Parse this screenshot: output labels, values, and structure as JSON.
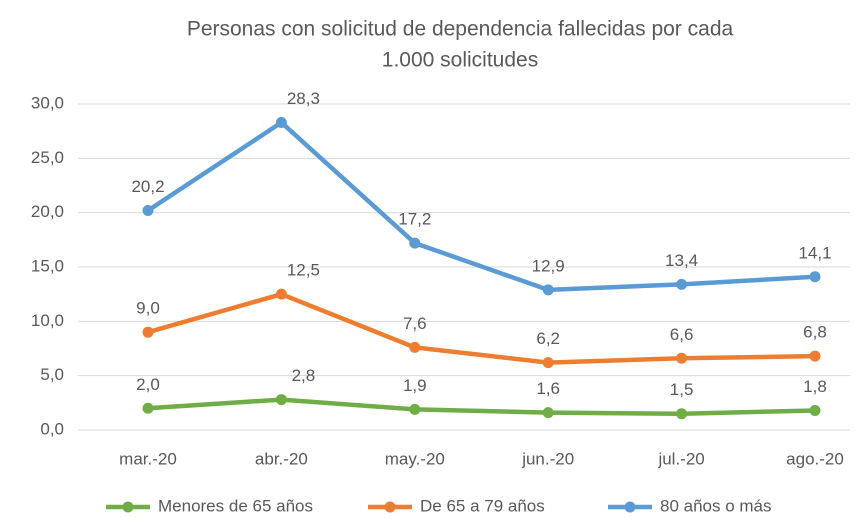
{
  "chart_data": {
    "type": "line",
    "title": [
      "Personas con solicitud de dependencia fallecidas por cada",
      "1.000 solicitudes"
    ],
    "categories": [
      "mar.-20",
      "abr.-20",
      "may.-20",
      "jun.-20",
      "jul.-20",
      "ago.-20"
    ],
    "series": [
      {
        "name": "Menores de 65 años",
        "color": "#70ad47",
        "values": [
          2.0,
          2.8,
          1.9,
          1.6,
          1.5,
          1.8
        ],
        "value_labels": [
          "2,0",
          "2,8",
          "1,9",
          "1,6",
          "1,5",
          "1,8"
        ]
      },
      {
        "name": "De 65 a 79 años",
        "color": "#ed7d31",
        "values": [
          9.0,
          12.5,
          7.6,
          6.2,
          6.6,
          6.8
        ],
        "value_labels": [
          "9,0",
          "12,5",
          "7,6",
          "6,2",
          "6,6",
          "6,8"
        ]
      },
      {
        "name": "80 años o más",
        "color": "#5b9bd5",
        "values": [
          20.2,
          28.3,
          17.2,
          12.9,
          13.4,
          14.1
        ],
        "value_labels": [
          "20,2",
          "28,3",
          "17,2",
          "12,9",
          "13,4",
          "14,1"
        ]
      }
    ],
    "ylim": [
      0,
      30
    ],
    "yticks": [
      {
        "value": 0,
        "label": "0,0"
      },
      {
        "value": 5,
        "label": "5,0"
      },
      {
        "value": 10,
        "label": "10,0"
      },
      {
        "value": 15,
        "label": "15,0"
      },
      {
        "value": 20,
        "label": "20,0"
      },
      {
        "value": 25,
        "label": "25,0"
      },
      {
        "value": 30,
        "label": "30,0"
      }
    ],
    "grid": true,
    "legend": "bottom"
  }
}
